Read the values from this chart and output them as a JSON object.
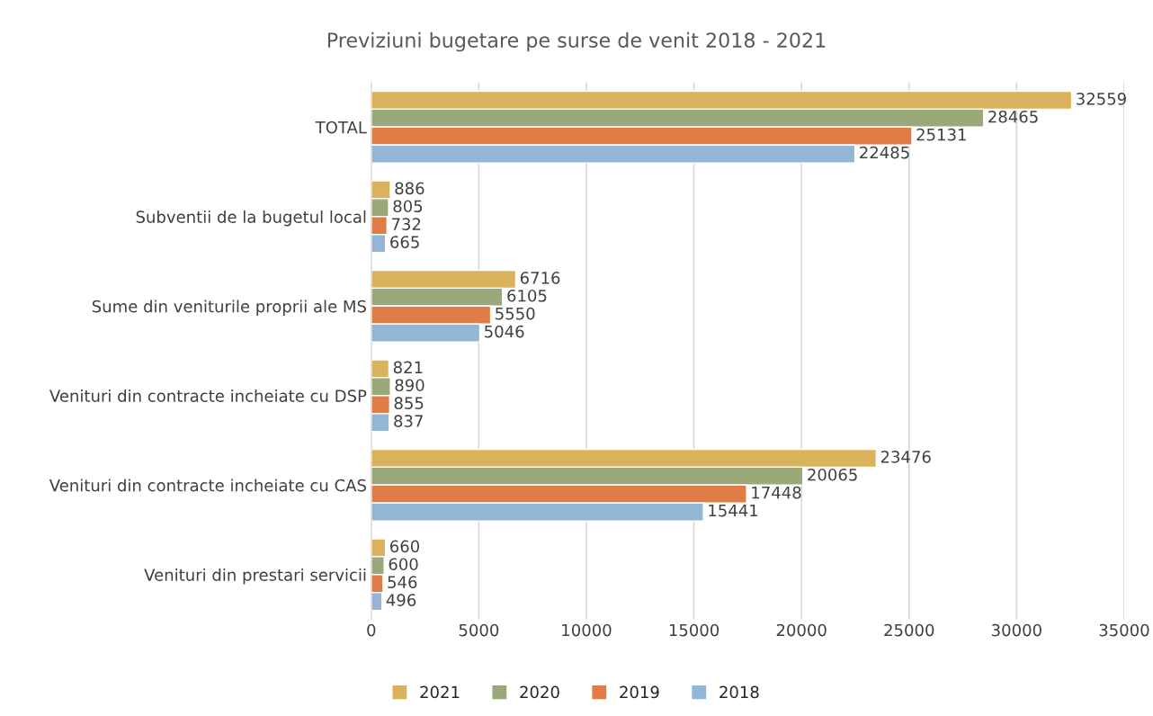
{
  "chart_data": {
    "type": "bar",
    "orientation": "horizontal",
    "title": "Previziuni bugetare pe surse de venit 2018 - 2021",
    "categories": [
      "TOTAL",
      "Subventii de la bugetul local",
      "Sume din veniturile proprii ale MS",
      "Venituri din contracte incheiate cu DSP",
      "Venituri din contracte incheiate cu CAS",
      "Venituri din prestari servicii"
    ],
    "series": [
      {
        "name": "2021",
        "color": "#dbb25c",
        "values": [
          32559,
          886,
          6716,
          821,
          23476,
          660
        ]
      },
      {
        "name": "2020",
        "color": "#9ba879",
        "values": [
          28465,
          805,
          6105,
          890,
          20065,
          600
        ]
      },
      {
        "name": "2019",
        "color": "#e07d47",
        "values": [
          25131,
          732,
          5550,
          855,
          17448,
          546
        ]
      },
      {
        "name": "2018",
        "color": "#93b5d6",
        "values": [
          22485,
          665,
          5046,
          837,
          15441,
          496
        ]
      }
    ],
    "xlim": [
      0,
      35000
    ],
    "xticks": [
      0,
      5000,
      10000,
      15000,
      20000,
      25000,
      30000,
      35000
    ],
    "grid": "x",
    "legend": "bottom",
    "data_labels": true
  }
}
